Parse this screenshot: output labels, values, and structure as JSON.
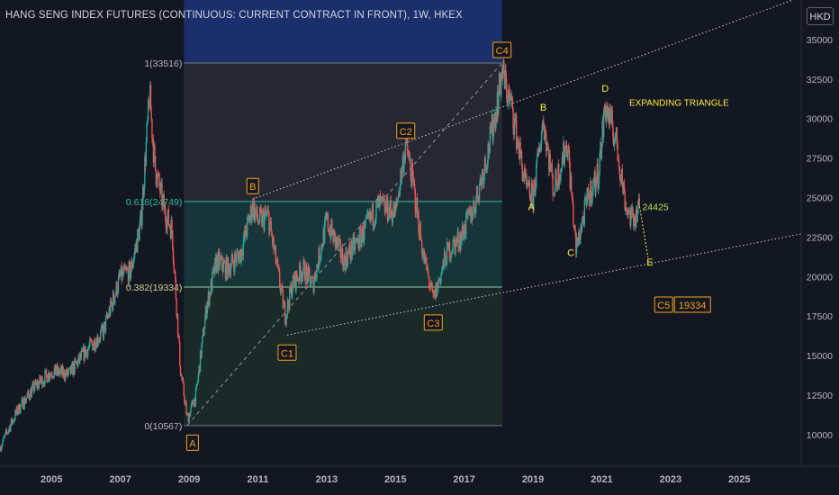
{
  "header": {
    "title": "HANG SENG INDEX FUTURES (CONTINUOUS: CURRENT CONTRACT IN FRONT), 1W, HKEX",
    "currency": "HKD"
  },
  "colors": {
    "background": "#131722",
    "up": "#26a69a",
    "down": "#ef5350",
    "label": "#f7a21b",
    "wave_text": "#ffeb3b",
    "fib_level": "#2bbfa3",
    "axis_text": "#b2b5be"
  },
  "chart_data": {
    "type": "candlestick",
    "title": "HANG SENG INDEX FUTURES (CONTINUOUS: CURRENT CONTRACT IN FRONT), 1W, HKEX",
    "currency": "HKD",
    "timeframe": "1W",
    "x_range": [
      2003.5,
      2026.8
    ],
    "y_range": [
      8000,
      37500
    ],
    "x_ticks": [
      "2005",
      "2007",
      "2009",
      "2011",
      "2013",
      "2015",
      "2017",
      "2019",
      "2021",
      "2023",
      "2025"
    ],
    "y_ticks": [
      "10000",
      "12500",
      "15000",
      "17500",
      "20000",
      "22500",
      "25000",
      "27500",
      "30000",
      "32500",
      "35000"
    ],
    "price_path": [
      [
        2003.5,
        9200
      ],
      [
        2004.0,
        11500
      ],
      [
        2004.5,
        13000
      ],
      [
        2005.0,
        14000
      ],
      [
        2005.5,
        13800
      ],
      [
        2006.0,
        15300
      ],
      [
        2006.5,
        16500
      ],
      [
        2007.0,
        20000
      ],
      [
        2007.3,
        20300
      ],
      [
        2007.6,
        23500
      ],
      [
        2007.85,
        31500
      ],
      [
        2008.0,
        27000
      ],
      [
        2008.3,
        24000
      ],
      [
        2008.5,
        23000
      ],
      [
        2008.75,
        14000
      ],
      [
        2008.95,
        11000
      ],
      [
        2009.2,
        12500
      ],
      [
        2009.5,
        18000
      ],
      [
        2009.8,
        21000
      ],
      [
        2010.1,
        20500
      ],
      [
        2010.5,
        21500
      ],
      [
        2010.85,
        24500
      ],
      [
        2011.0,
        23500
      ],
      [
        2011.3,
        23800
      ],
      [
        2011.6,
        20000
      ],
      [
        2011.8,
        17500
      ],
      [
        2012.0,
        19500
      ],
      [
        2012.3,
        20500
      ],
      [
        2012.6,
        19500
      ],
      [
        2013.0,
        23500
      ],
      [
        2013.5,
        21000
      ],
      [
        2014.0,
        22500
      ],
      [
        2014.5,
        24500
      ],
      [
        2015.0,
        24000
      ],
      [
        2015.3,
        28500
      ],
      [
        2015.5,
        26000
      ],
      [
        2015.8,
        21500
      ],
      [
        2016.1,
        18500
      ],
      [
        2016.5,
        21500
      ],
      [
        2016.9,
        22500
      ],
      [
        2017.3,
        24500
      ],
      [
        2017.7,
        28000
      ],
      [
        2018.0,
        31500
      ],
      [
        2018.1,
        33000
      ],
      [
        2018.4,
        30500
      ],
      [
        2018.8,
        25500
      ],
      [
        2019.0,
        25000
      ],
      [
        2019.3,
        30000
      ],
      [
        2019.6,
        25500
      ],
      [
        2020.0,
        28500
      ],
      [
        2020.25,
        21700
      ],
      [
        2020.6,
        25000
      ],
      [
        2020.9,
        26500
      ],
      [
        2021.1,
        30800
      ],
      [
        2021.4,
        28800
      ],
      [
        2021.7,
        24500
      ],
      [
        2021.9,
        23500
      ],
      [
        2022.1,
        24425
      ]
    ],
    "fib_retracement": {
      "levels": [
        {
          "ratio": "1",
          "price": 33516,
          "label": "1(33516)"
        },
        {
          "ratio": "0.618",
          "price": 24749,
          "label": "0.618(24749)"
        },
        {
          "ratio": "0.382",
          "price": 19334,
          "label": "0.382(19334)"
        },
        {
          "ratio": "0",
          "price": 10567,
          "label": "0(10567)"
        }
      ],
      "x_start": 2008.85,
      "x_end": 2018.1
    },
    "wave_labels_boxed": [
      {
        "label": "A",
        "x": 2009.1,
        "y": 10600,
        "anchor": "below"
      },
      {
        "label": "B",
        "x": 2010.85,
        "y": 24900,
        "anchor": "above"
      },
      {
        "label": "C1",
        "x": 2011.85,
        "y": 16300,
        "anchor": "below"
      },
      {
        "label": "C2",
        "x": 2015.3,
        "y": 28400,
        "anchor": "above"
      },
      {
        "label": "C3",
        "x": 2016.1,
        "y": 18200,
        "anchor": "below"
      },
      {
        "label": "C4",
        "x": 2018.1,
        "y": 33516,
        "anchor": "above"
      },
      {
        "label": "C5",
        "x": 2022.8,
        "y": 19334,
        "anchor": "below"
      }
    ],
    "wave_labels_plain": [
      {
        "label": "A",
        "x": 2018.95,
        "y": 24200
      },
      {
        "label": "B",
        "x": 2019.3,
        "y": 30500
      },
      {
        "label": "C",
        "x": 2020.1,
        "y": 21300
      },
      {
        "label": "D",
        "x": 2021.1,
        "y": 31700
      },
      {
        "label": "E",
        "x": 2022.4,
        "y": 20700
      }
    ],
    "annotations": {
      "pattern": "EXPANDING TRIANGLE",
      "last_price": "24425",
      "target": "19334"
    },
    "trendlines": [
      {
        "from": [
          2010.85,
          24900
        ],
        "to": [
          2026.8,
          37700
        ]
      },
      {
        "from": [
          2011.85,
          16300
        ],
        "to": [
          2026.8,
          22700
        ]
      },
      {
        "from": [
          2008.95,
          10600
        ],
        "to": [
          2018.1,
          33516
        ]
      }
    ]
  }
}
